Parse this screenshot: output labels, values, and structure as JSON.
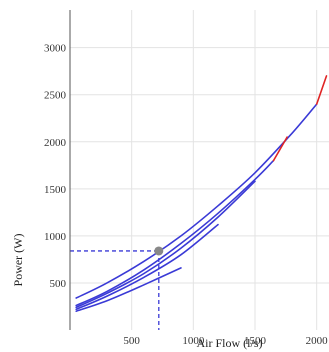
{
  "chart_data": {
    "type": "line",
    "xlabel": "Air Flow (l/s)",
    "ylabel": "Power (W)",
    "xlim": [
      0,
      2100
    ],
    "ylim": [
      0,
      3400
    ],
    "x_ticks": [
      500,
      1000,
      1500,
      2000
    ],
    "y_ticks": [
      500,
      1000,
      1500,
      2000,
      2500,
      3000
    ],
    "grid": true,
    "series": [
      {
        "x": [
          50,
          300,
          600,
          900,
          1200,
          1500,
          1800,
          2000
        ],
        "y": [
          340,
          500,
          730,
          1000,
          1320,
          1670,
          2090,
          2400
        ],
        "extension": {
          "x": [
            2000,
            2080
          ],
          "y": [
            2400,
            2700
          ]
        }
      },
      {
        "x": [
          50,
          300,
          600,
          900,
          1200,
          1500,
          1650
        ],
        "y": [
          260,
          410,
          640,
          920,
          1240,
          1600,
          1800
        ],
        "extension": {
          "x": [
            1650,
            1760
          ],
          "y": [
            1800,
            2050
          ]
        }
      },
      {
        "x": [
          50,
          300,
          600,
          900,
          1200,
          1500
        ],
        "y": [
          240,
          390,
          600,
          870,
          1200,
          1580
        ]
      },
      {
        "x": [
          50,
          300,
          600,
          900,
          1200
        ],
        "y": [
          220,
          360,
          560,
          800,
          1120
        ]
      },
      {
        "x": [
          50,
          300,
          600,
          900
        ],
        "y": [
          200,
          310,
          480,
          660
        ]
      }
    ],
    "operating_point": {
      "x": 720,
      "y": 840
    },
    "colors": {
      "curve": "#3a3ad6",
      "extension": "#e02424",
      "point": "#888888",
      "guide": "#3a3ad6"
    }
  }
}
